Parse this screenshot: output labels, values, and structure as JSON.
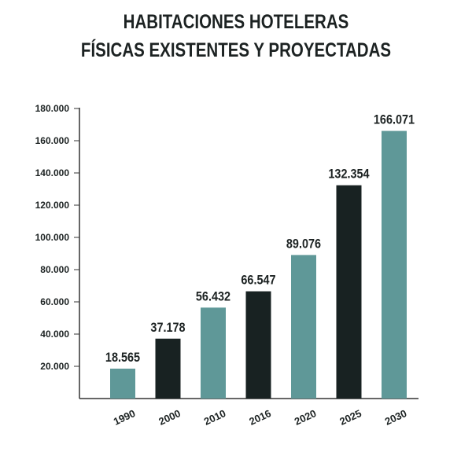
{
  "chart_data": {
    "type": "bar",
    "title": [
      "HABITACIONES HOTELERAS",
      "FÍSICAS EXISTENTES Y PROYECTADAS"
    ],
    "categories": [
      "1990",
      "2000",
      "2010",
      "2016",
      "2020",
      "2025",
      "2030"
    ],
    "values": [
      18565,
      37178,
      56432,
      66547,
      89076,
      132354,
      166071
    ],
    "value_labels": [
      "18.565",
      "37.178",
      "56.432",
      "66.547",
      "89.076",
      "132.354",
      "166.071"
    ],
    "colors": [
      "#5f9898",
      "#182222",
      "#5f9898",
      "#182222",
      "#5f9898",
      "#182222",
      "#5f9898"
    ],
    "yticks": [
      20000,
      40000,
      60000,
      80000,
      100000,
      120000,
      140000,
      160000,
      180000
    ],
    "ytick_labels": [
      "20.000",
      "40.000",
      "60.000",
      "80.000",
      "100.000",
      "120.000",
      "140.000",
      "160.000",
      "180.000"
    ],
    "ylim": [
      0,
      180000
    ],
    "xlabel": "",
    "ylabel": "",
    "grid": false,
    "legend": "none"
  }
}
